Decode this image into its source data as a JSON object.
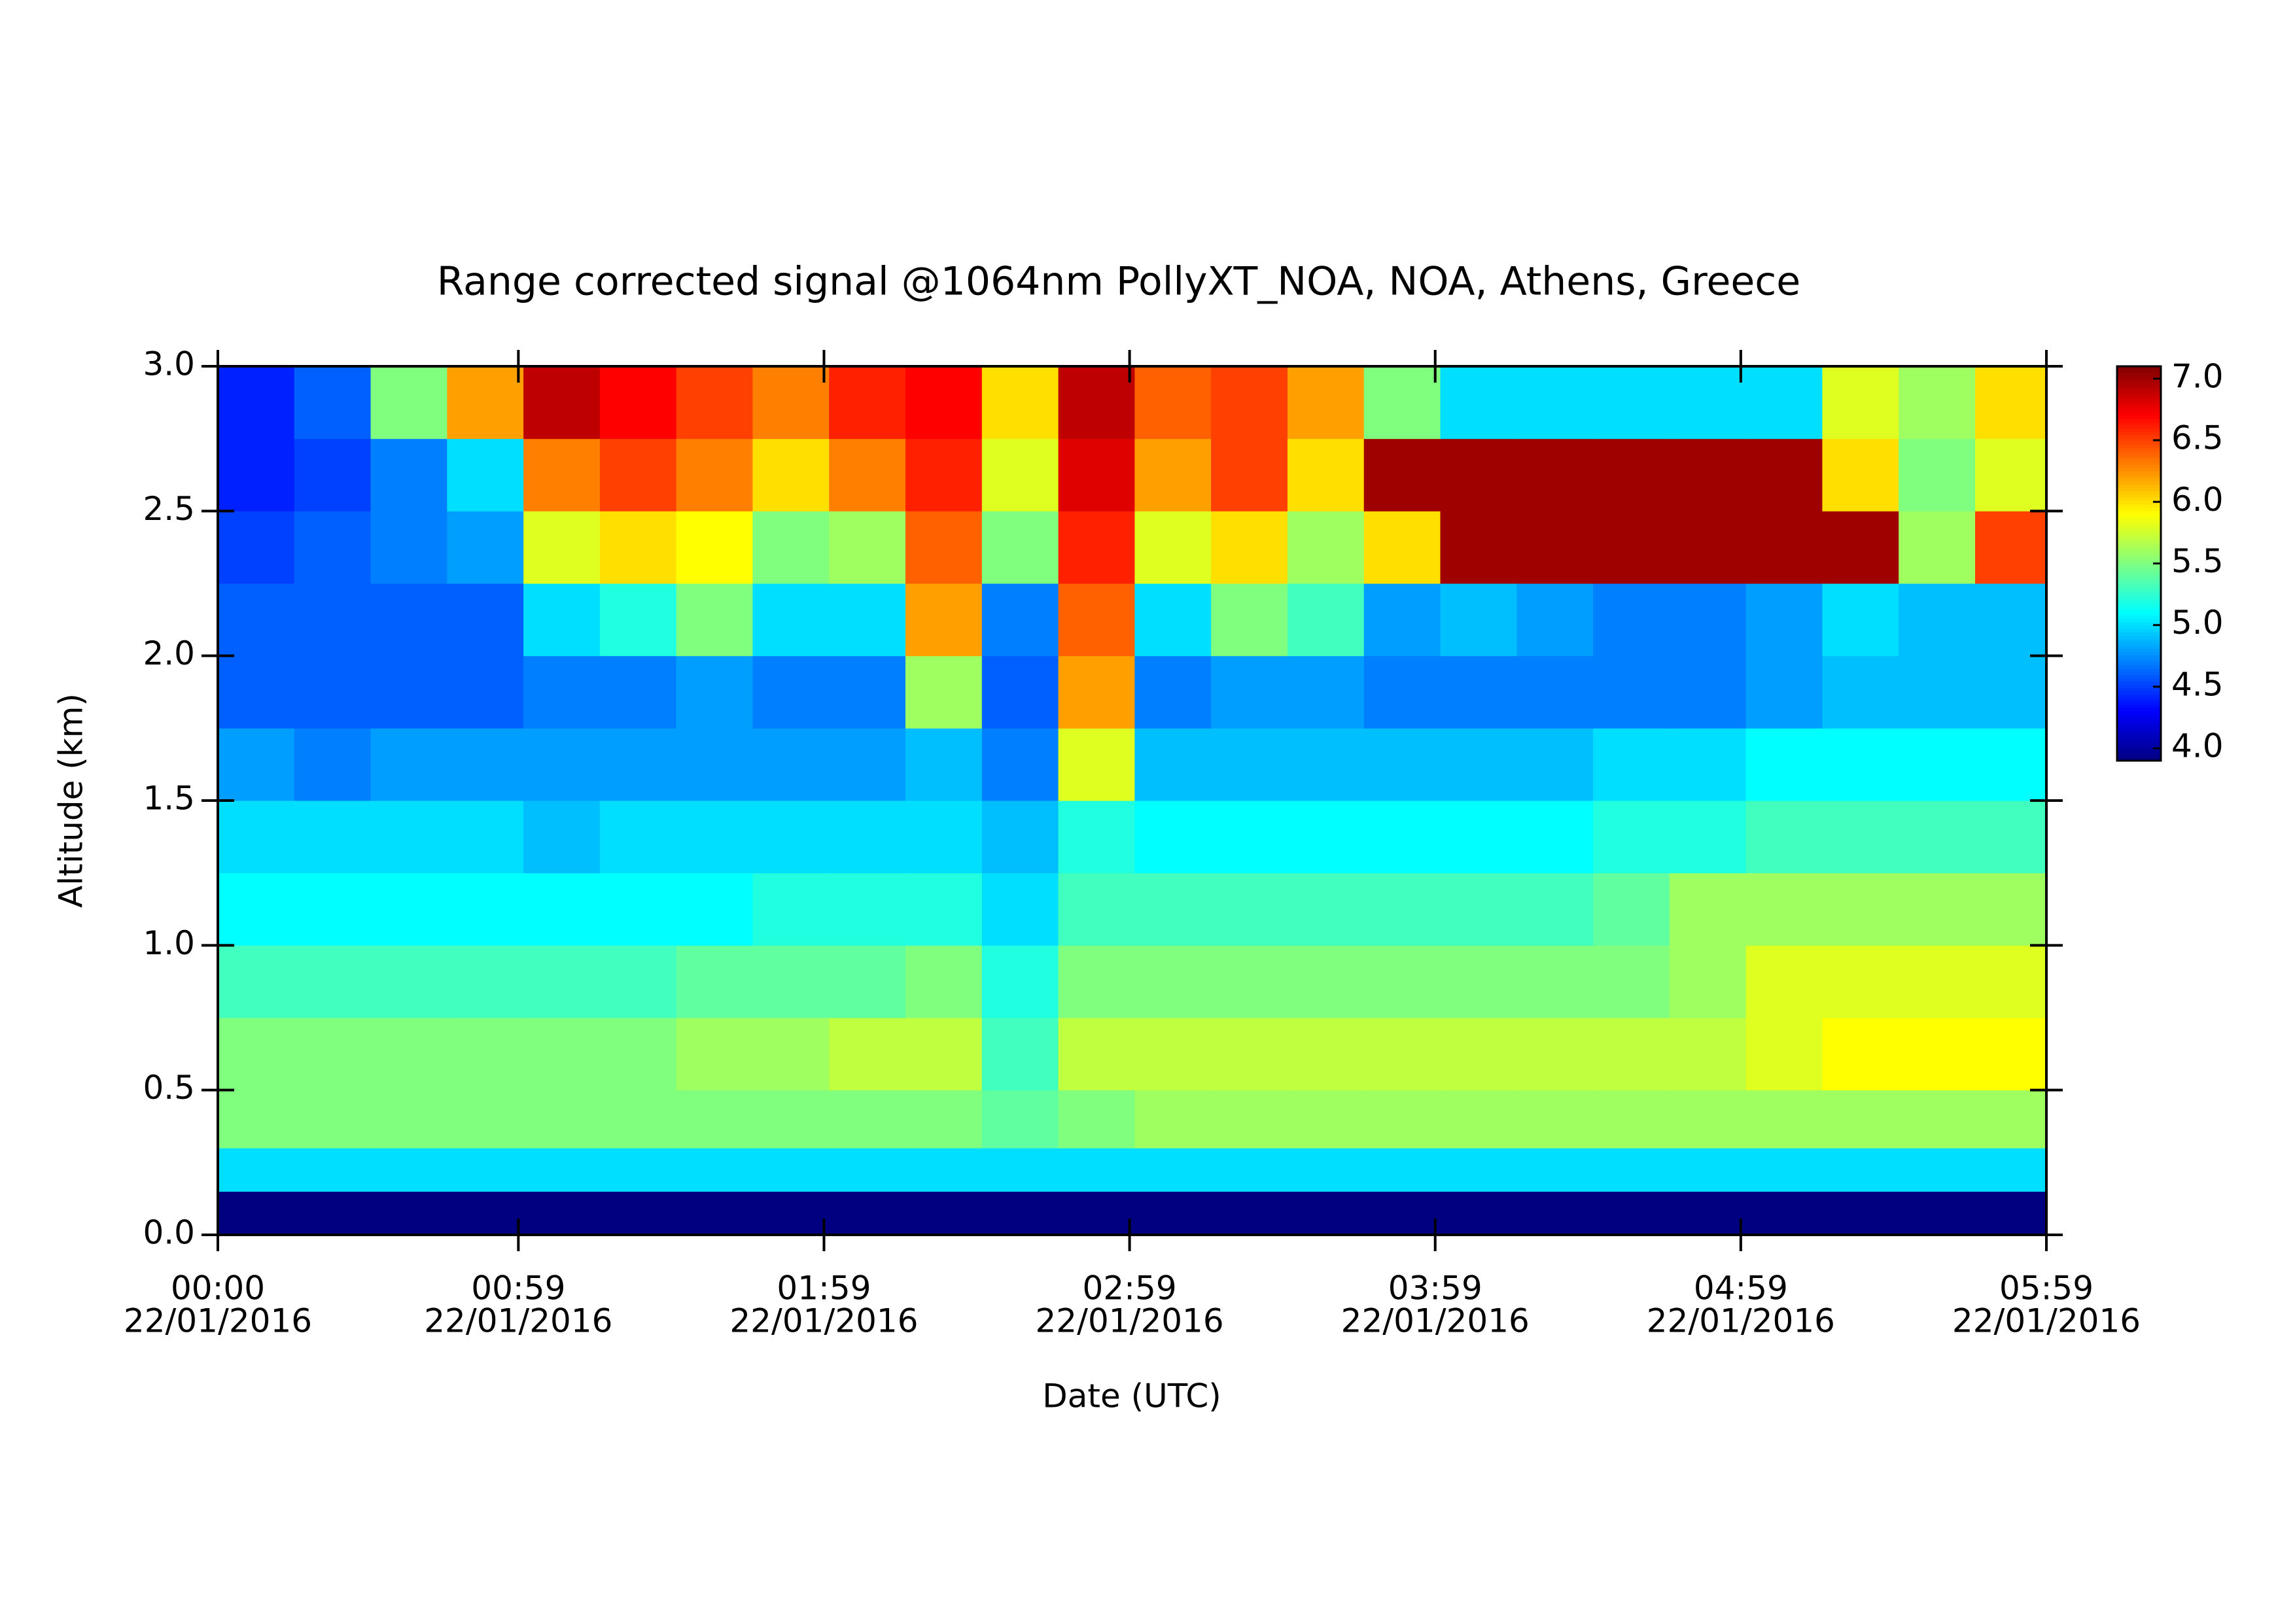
{
  "chart_data": {
    "type": "heatmap",
    "title": "Range corrected signal @1064nm  PollyXT_NOA, NOA, Athens, Greece",
    "x_label": "Date (UTC)",
    "y_label": "Altitude (km)",
    "xlim": [
      0,
      359
    ],
    "xticks": [
      {
        "value": 0,
        "label": "00:00",
        "sublabel": "22/01/2016"
      },
      {
        "value": 59,
        "label": "00:59",
        "sublabel": "22/01/2016"
      },
      {
        "value": 119,
        "label": "01:59",
        "sublabel": "22/01/2016"
      },
      {
        "value": 179,
        "label": "02:59",
        "sublabel": "22/01/2016"
      },
      {
        "value": 239,
        "label": "03:59",
        "sublabel": "22/01/2016"
      },
      {
        "value": 299,
        "label": "04:59",
        "sublabel": "22/01/2016"
      },
      {
        "value": 359,
        "label": "05:59",
        "sublabel": "22/01/2016"
      }
    ],
    "ylim": [
      0,
      3.0
    ],
    "yticks": [
      {
        "value": 0,
        "label": "0.0"
      },
      {
        "value": 0.5,
        "label": "0.5"
      },
      {
        "value": 1,
        "label": "1.0"
      },
      {
        "value": 1.5,
        "label": "1.5"
      },
      {
        "value": 2,
        "label": "2.0"
      },
      {
        "value": 2.5,
        "label": "2.5"
      },
      {
        "value": 3,
        "label": "3.0"
      }
    ],
    "zlim": [
      3.9,
      7.1
    ],
    "zticks": [
      {
        "value": 4,
        "label": "4.0"
      },
      {
        "value": 4.5,
        "label": "4.5"
      },
      {
        "value": 5,
        "label": "5.0"
      },
      {
        "value": 5.5,
        "label": "5.5"
      },
      {
        "value": 6,
        "label": "6.0"
      },
      {
        "value": 6.5,
        "label": "6.5"
      },
      {
        "value": 7,
        "label": "7.0"
      }
    ],
    "colormap": "jet",
    "xbins": [
      0,
      15,
      30,
      45,
      60,
      75,
      90,
      105,
      120,
      135,
      150,
      165,
      180,
      195,
      210,
      225,
      240,
      255,
      270,
      285,
      300,
      315,
      330,
      345,
      359
    ],
    "ybins": [
      0,
      0.15,
      0.3,
      0.5,
      0.75,
      1.0,
      1.25,
      1.5,
      1.75,
      2.0,
      2.25,
      2.5,
      2.75,
      3.0
    ],
    "z": [
      [
        3.9,
        3.9,
        3.9,
        3.9,
        3.9,
        3.9,
        3.9,
        3.9,
        3.9,
        3.9,
        3.9,
        3.9,
        3.9,
        3.9,
        3.9,
        3.9,
        3.9,
        3.9,
        3.9,
        3.9,
        3.9,
        3.9,
        3.9,
        3.9
      ],
      [
        5.0,
        5.0,
        5.0,
        5.0,
        5.0,
        5.0,
        5.0,
        5.0,
        5.0,
        5.0,
        5.0,
        5.0,
        5.0,
        5.0,
        5.0,
        5.0,
        5.0,
        5.0,
        5.0,
        5.0,
        5.0,
        5.0,
        5.0,
        5.0
      ],
      [
        5.5,
        5.5,
        5.5,
        5.5,
        5.5,
        5.5,
        5.5,
        5.5,
        5.5,
        5.5,
        5.4,
        5.5,
        5.6,
        5.6,
        5.6,
        5.6,
        5.6,
        5.6,
        5.6,
        5.6,
        5.6,
        5.6,
        5.6,
        5.6
      ],
      [
        5.5,
        5.5,
        5.5,
        5.5,
        5.5,
        5.5,
        5.6,
        5.6,
        5.7,
        5.7,
        5.3,
        5.7,
        5.7,
        5.7,
        5.7,
        5.7,
        5.7,
        5.7,
        5.7,
        5.7,
        5.8,
        5.9,
        5.9,
        5.9
      ],
      [
        5.3,
        5.3,
        5.3,
        5.3,
        5.3,
        5.3,
        5.4,
        5.4,
        5.4,
        5.5,
        5.2,
        5.5,
        5.5,
        5.5,
        5.5,
        5.5,
        5.5,
        5.5,
        5.5,
        5.6,
        5.8,
        5.8,
        5.8,
        5.8
      ],
      [
        5.1,
        5.1,
        5.1,
        5.1,
        5.1,
        5.1,
        5.1,
        5.2,
        5.2,
        5.2,
        5.0,
        5.3,
        5.3,
        5.3,
        5.3,
        5.3,
        5.3,
        5.3,
        5.4,
        5.6,
        5.6,
        5.6,
        5.6,
        5.6
      ],
      [
        5.0,
        5.0,
        5.0,
        5.0,
        4.9,
        5.0,
        5.0,
        5.0,
        5.0,
        5.0,
        4.9,
        5.2,
        5.1,
        5.1,
        5.1,
        5.1,
        5.1,
        5.1,
        5.2,
        5.2,
        5.3,
        5.3,
        5.3,
        5.3
      ],
      [
        4.8,
        4.7,
        4.8,
        4.8,
        4.8,
        4.8,
        4.8,
        4.8,
        4.8,
        4.9,
        4.7,
        5.8,
        4.9,
        4.9,
        4.9,
        4.9,
        4.9,
        4.9,
        5.0,
        5.0,
        5.1,
        5.1,
        5.1,
        5.1
      ],
      [
        4.6,
        4.6,
        4.6,
        4.6,
        4.7,
        4.7,
        4.8,
        4.7,
        4.7,
        5.6,
        4.6,
        6.2,
        4.7,
        4.8,
        4.8,
        4.7,
        4.7,
        4.7,
        4.7,
        4.7,
        4.8,
        4.9,
        4.9,
        4.9
      ],
      [
        4.6,
        4.6,
        4.6,
        4.6,
        5.0,
        5.2,
        5.5,
        5.0,
        5.0,
        6.2,
        4.7,
        6.4,
        5.0,
        5.5,
        5.3,
        4.8,
        4.9,
        4.8,
        4.7,
        4.7,
        4.8,
        5.0,
        4.9,
        4.9
      ],
      [
        4.5,
        4.6,
        4.7,
        4.8,
        5.8,
        6.0,
        5.9,
        5.5,
        5.6,
        6.4,
        5.5,
        6.6,
        5.8,
        6.0,
        5.6,
        6.0,
        7.0,
        7.0,
        7.0,
        7.0,
        7.0,
        7.0,
        5.6,
        6.5
      ],
      [
        4.4,
        4.5,
        4.7,
        5.0,
        6.3,
        6.5,
        6.3,
        6.0,
        6.3,
        6.6,
        5.8,
        6.8,
        6.2,
        6.5,
        6.0,
        7.0,
        7.0,
        7.0,
        7.0,
        7.0,
        7.0,
        6.0,
        5.5,
        5.8
      ],
      [
        4.4,
        4.6,
        5.5,
        6.2,
        6.9,
        6.7,
        6.5,
        6.3,
        6.6,
        6.7,
        6.0,
        6.9,
        6.4,
        6.5,
        6.2,
        5.5,
        5.0,
        5.0,
        5.0,
        5.0,
        5.0,
        5.8,
        5.6,
        6.0
      ]
    ]
  }
}
